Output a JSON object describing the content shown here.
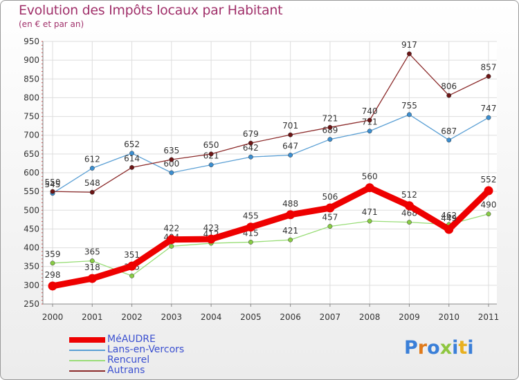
{
  "title": "Evolution des Impôts locaux par Habitant",
  "subtitle": "(en € et par an)",
  "logo": "Proxiti",
  "chart_data": {
    "type": "line",
    "x": [
      "2000",
      "2001",
      "2002",
      "2003",
      "2004",
      "2005",
      "2006",
      "2007",
      "2008",
      "2009",
      "2010",
      "2011"
    ],
    "yticks": [
      "250",
      "300",
      "350",
      "400",
      "450",
      "500",
      "550",
      "600",
      "650",
      "700",
      "750",
      "800",
      "850",
      "900",
      "950"
    ],
    "ylim": [
      250,
      950
    ],
    "series": [
      {
        "name": "MéAUDRE",
        "color": "#ee0000",
        "values": [
          298,
          318,
          351,
          422,
          423,
          455,
          488,
          506,
          560,
          512,
          449,
          552
        ],
        "labels": [
          "298",
          "318",
          "351",
          "422",
          "423",
          "455",
          "488",
          "506",
          "560",
          "512",
          "449",
          "552"
        ]
      },
      {
        "name": "Lans-en-Vercors",
        "color": "#5a9fd4",
        "values": [
          545,
          612,
          652,
          600,
          621,
          642,
          647,
          689,
          711,
          755,
          687,
          747
        ],
        "labels": [
          "545",
          "612",
          "652",
          "600",
          "621",
          "642",
          "647",
          "689",
          "711",
          "755",
          "687",
          "747"
        ]
      },
      {
        "name": "Rencurel",
        "color": "#99dd77",
        "values": [
          359,
          365,
          325,
          404,
          412,
          415,
          421,
          457,
          471,
          468,
          462,
          490
        ],
        "labels": [
          "359",
          "365",
          "325",
          "404",
          "412",
          "415",
          "421",
          "457",
          "471",
          "468",
          "462",
          "490"
        ]
      },
      {
        "name": "Autrans",
        "color": "#8b2a2a",
        "values": [
          550,
          548,
          614,
          635,
          650,
          679,
          701,
          721,
          740,
          917,
          806,
          857
        ],
        "labels": [
          "550",
          "548",
          "614",
          "635",
          "650",
          "679",
          "701",
          "721",
          "740",
          "917",
          "806",
          "857"
        ]
      }
    ]
  }
}
